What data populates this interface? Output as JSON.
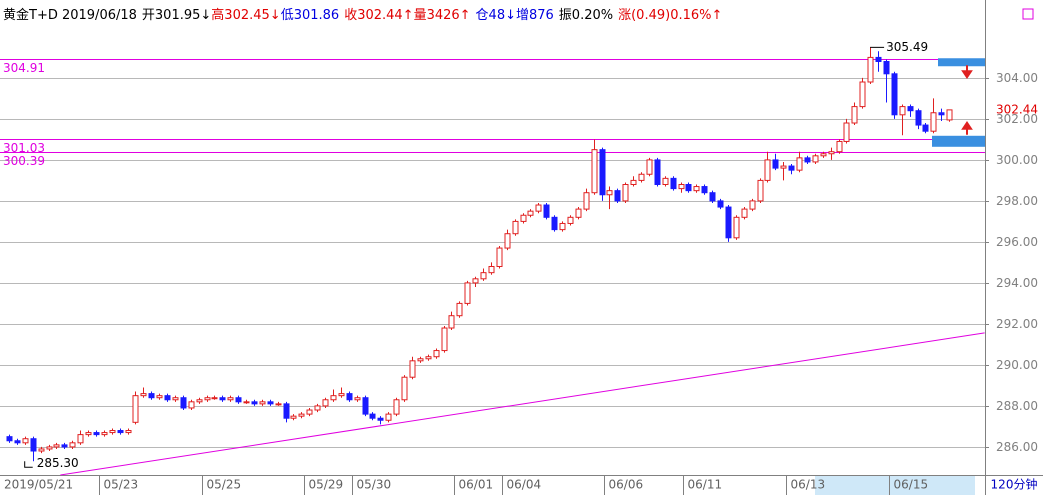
{
  "chart_data": {
    "type": "candlestick",
    "header": [
      {
        "text": "黄金T+D 2019/06/18",
        "color": "#000000"
      },
      {
        "text": "开301.95↓",
        "color": "#000000"
      },
      {
        "text": "高302.45↓",
        "color": "#e00000"
      },
      {
        "text": "低301.86",
        "color": "#0000e0"
      },
      {
        "text": "收302.44↑量3426↑",
        "color": "#e00000"
      },
      {
        "text": "仓48↓增876",
        "color": "#0000e0"
      },
      {
        "text": "振0.20%",
        "color": "#000000"
      },
      {
        "text": "涨(0.49)0.16%↑",
        "color": "#e00000"
      }
    ],
    "period": "120分钟",
    "up_color": "#e02020",
    "down_color": "#1a1aff",
    "ylim": [
      284.63,
      307.8
    ],
    "yticks": [
      {
        "value": 286,
        "label": "286.00"
      },
      {
        "value": 288,
        "label": "288.00"
      },
      {
        "value": 290,
        "label": "290.00"
      },
      {
        "value": 292,
        "label": "292.00"
      },
      {
        "value": 294,
        "label": "294.00"
      },
      {
        "value": 296,
        "label": "296.00"
      },
      {
        "value": 298,
        "label": "298.00"
      },
      {
        "value": 300,
        "label": "300.00"
      },
      {
        "value": 302,
        "label": "302.00"
      },
      {
        "value": 304,
        "label": "304.00"
      }
    ],
    "grid": true,
    "last_price": 302.44,
    "max_label": 305.49,
    "min_label": {
      "value": 285.3,
      "label": "285.30"
    },
    "hlines": [
      {
        "value": 304.91,
        "label": "304.91"
      },
      {
        "value": 301.03,
        "label": "301.03"
      },
      {
        "value": 300.39,
        "label": "300.39"
      }
    ],
    "line_color": "#e000e0",
    "trendline": {
      "start": [
        6.5,
        284.63
      ],
      "end": [
        123.5,
        291.56
      ]
    },
    "categories": [
      "2019/05/21",
      null,
      null,
      null,
      null,
      null,
      null,
      null,
      null,
      null,
      null,
      null,
      "05/23",
      null,
      null,
      null,
      null,
      null,
      null,
      null,
      null,
      null,
      null,
      null,
      null,
      "05/25",
      null,
      null,
      null,
      null,
      null,
      null,
      null,
      null,
      null,
      null,
      null,
      null,
      "05/29",
      null,
      null,
      null,
      null,
      null,
      "05/30",
      null,
      null,
      null,
      null,
      null,
      null,
      null,
      null,
      null,
      null,
      null,
      null,
      "06/01",
      null,
      null,
      null,
      null,
      null,
      "06/04",
      null,
      null,
      null,
      null,
      null,
      null,
      null,
      null,
      null,
      null,
      null,
      null,
      "06/06",
      null,
      null,
      null,
      null,
      null,
      null,
      null,
      null,
      null,
      "06/11",
      null,
      null,
      null,
      null,
      null,
      null,
      null,
      null,
      null,
      null,
      null,
      null,
      "06/13",
      null,
      null,
      null,
      null,
      null,
      null,
      null,
      null,
      null,
      null,
      null,
      null,
      "06/15",
      null,
      null,
      null,
      null,
      null,
      null,
      null
    ],
    "open": [
      286.5,
      286.3,
      286.2,
      286.4,
      285.8,
      285.9,
      286.0,
      286.1,
      286.0,
      286.2,
      286.6,
      286.7,
      286.6,
      286.7,
      286.8,
      286.7,
      287.2,
      288.5,
      288.6,
      288.4,
      288.5,
      288.3,
      288.4,
      287.9,
      288.2,
      288.3,
      288.4,
      288.4,
      288.3,
      288.4,
      288.2,
      288.2,
      288.1,
      288.2,
      288.1,
      288.1,
      287.4,
      287.5,
      287.6,
      287.8,
      288.0,
      288.3,
      288.5,
      288.6,
      288.3,
      288.4,
      287.6,
      287.4,
      287.3,
      287.6,
      288.3,
      289.4,
      290.2,
      290.3,
      290.4,
      290.7,
      291.8,
      292.4,
      293.0,
      294.0,
      294.2,
      294.5,
      294.8,
      295.7,
      296.4,
      297.0,
      297.3,
      297.5,
      297.8,
      297.2,
      296.6,
      296.9,
      297.2,
      297.6,
      298.4,
      300.5,
      298.3,
      298.5,
      298.0,
      298.8,
      299.0,
      299.3,
      300.0,
      298.8,
      299.1,
      298.6,
      298.8,
      298.5,
      298.7,
      298.4,
      298.0,
      297.7,
      296.2,
      297.2,
      297.6,
      298.0,
      299.0,
      300.0,
      299.6,
      299.7,
      299.5,
      300.1,
      299.9,
      300.2,
      300.3,
      300.4,
      300.9,
      301.8,
      302.6,
      303.8,
      305.0,
      304.8,
      304.2,
      302.2,
      302.6,
      302.4,
      301.7,
      301.4,
      302.3,
      301.95
    ],
    "high": [
      286.6,
      286.4,
      286.5,
      286.5,
      286.0,
      286.1,
      286.2,
      286.2,
      286.3,
      286.8,
      286.8,
      286.8,
      286.8,
      286.9,
      286.9,
      286.9,
      288.7,
      288.9,
      288.7,
      288.6,
      288.6,
      288.5,
      288.5,
      288.3,
      288.4,
      288.5,
      288.5,
      288.5,
      288.5,
      288.5,
      288.3,
      288.3,
      288.3,
      288.3,
      288.2,
      288.2,
      287.6,
      287.7,
      287.9,
      288.1,
      288.4,
      288.8,
      288.9,
      288.7,
      288.5,
      288.5,
      287.7,
      287.5,
      287.7,
      288.4,
      289.5,
      290.4,
      290.4,
      290.5,
      290.8,
      291.9,
      292.6,
      293.1,
      294.1,
      294.3,
      294.7,
      295.0,
      295.8,
      296.6,
      297.1,
      297.4,
      297.6,
      297.9,
      297.9,
      297.3,
      297.0,
      297.3,
      297.7,
      298.6,
      301.0,
      300.6,
      298.7,
      298.6,
      298.9,
      299.2,
      299.4,
      300.1,
      300.1,
      299.2,
      299.2,
      298.9,
      298.9,
      298.8,
      298.8,
      298.5,
      298.1,
      297.8,
      297.3,
      297.7,
      298.1,
      299.1,
      300.4,
      300.3,
      299.9,
      299.8,
      300.4,
      300.2,
      300.3,
      300.4,
      300.6,
      301.0,
      302.0,
      302.8,
      304.0,
      305.49,
      305.3,
      304.9,
      304.3,
      302.7,
      302.7,
      302.5,
      301.8,
      303.0,
      302.5,
      302.45
    ],
    "low": [
      286.2,
      286.1,
      286.1,
      285.3,
      285.7,
      285.8,
      285.9,
      285.9,
      285.9,
      286.1,
      286.5,
      286.5,
      286.5,
      286.6,
      286.6,
      286.6,
      287.1,
      288.4,
      288.3,
      288.3,
      288.2,
      288.2,
      287.8,
      287.8,
      288.1,
      288.2,
      288.3,
      288.2,
      288.2,
      288.1,
      288.1,
      288.0,
      288.0,
      288.0,
      288.0,
      287.2,
      287.3,
      287.4,
      287.5,
      287.7,
      287.9,
      288.2,
      288.4,
      288.2,
      288.2,
      287.5,
      287.3,
      287.1,
      287.2,
      287.5,
      288.2,
      289.3,
      290.1,
      290.2,
      290.3,
      290.6,
      291.7,
      292.3,
      292.9,
      293.8,
      294.1,
      294.4,
      294.7,
      295.6,
      296.3,
      296.9,
      297.2,
      297.4,
      297.1,
      296.5,
      296.5,
      296.8,
      297.1,
      297.5,
      298.3,
      298.0,
      297.6,
      297.9,
      297.9,
      298.7,
      298.9,
      299.2,
      298.7,
      298.7,
      298.5,
      298.4,
      298.4,
      298.4,
      298.3,
      297.9,
      297.6,
      296.0,
      296.1,
      297.1,
      297.5,
      297.9,
      298.9,
      299.5,
      299.0,
      299.3,
      299.4,
      299.8,
      299.8,
      300.1,
      300.0,
      300.3,
      300.8,
      301.7,
      302.5,
      303.7,
      304.3,
      302.8,
      302.0,
      301.2,
      302.1,
      301.5,
      301.3,
      301.3,
      301.9,
      301.86
    ],
    "close": [
      286.3,
      286.2,
      286.4,
      285.8,
      285.9,
      286.0,
      286.1,
      286.0,
      286.2,
      286.6,
      286.7,
      286.6,
      286.7,
      286.8,
      286.7,
      286.8,
      288.5,
      288.6,
      288.4,
      288.5,
      288.3,
      288.4,
      287.9,
      288.2,
      288.3,
      288.4,
      288.4,
      288.3,
      288.4,
      288.2,
      288.2,
      288.1,
      288.2,
      288.1,
      288.1,
      287.4,
      287.5,
      287.6,
      287.8,
      288.0,
      288.3,
      288.5,
      288.6,
      288.3,
      288.4,
      287.6,
      287.4,
      287.3,
      287.6,
      288.3,
      289.4,
      290.2,
      290.3,
      290.4,
      290.7,
      291.8,
      292.4,
      293.0,
      294.0,
      294.2,
      294.5,
      294.8,
      295.7,
      296.4,
      297.0,
      297.3,
      297.5,
      297.8,
      297.2,
      296.6,
      296.9,
      297.2,
      297.6,
      298.4,
      300.5,
      298.3,
      298.5,
      298.0,
      298.8,
      299.0,
      299.3,
      300.0,
      298.8,
      299.1,
      298.6,
      298.8,
      298.5,
      298.7,
      298.4,
      298.0,
      297.7,
      296.2,
      297.2,
      297.6,
      298.0,
      299.0,
      300.0,
      299.6,
      299.7,
      299.5,
      300.1,
      299.9,
      300.2,
      300.3,
      300.4,
      300.9,
      301.8,
      302.6,
      303.8,
      305.0,
      304.8,
      304.2,
      302.2,
      302.6,
      302.4,
      301.7,
      301.4,
      302.3,
      302.2,
      302.44
    ]
  }
}
